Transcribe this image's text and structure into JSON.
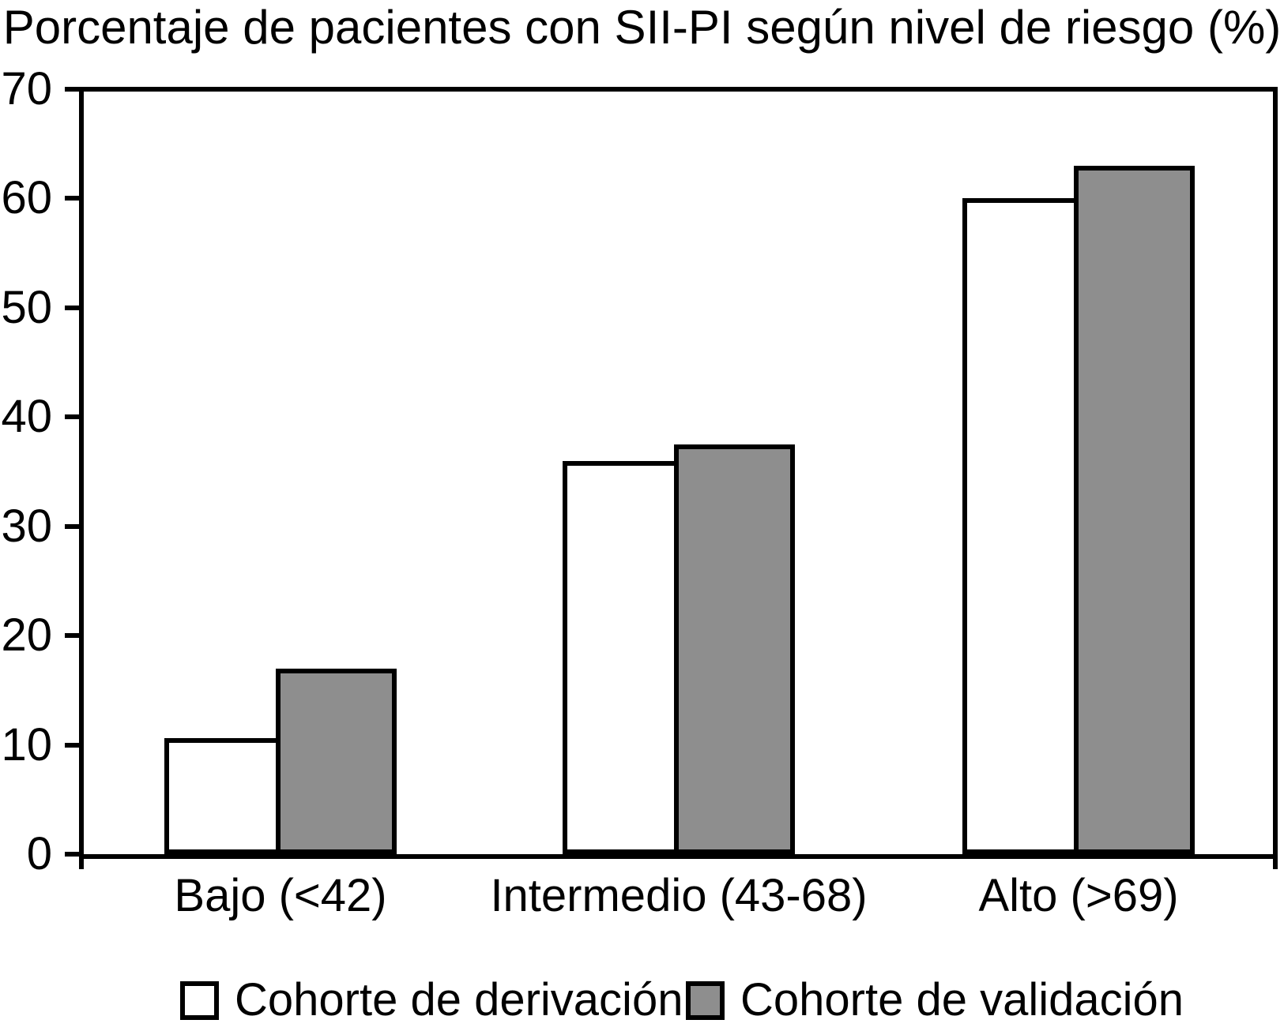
{
  "chart_data": {
    "type": "bar",
    "title": "Porcentaje de pacientes con SII-PI según nivel de riesgo (%)",
    "xlabel": "",
    "ylabel": "",
    "ylim": [
      0,
      70
    ],
    "yticks": [
      0,
      10,
      20,
      30,
      40,
      50,
      60,
      70
    ],
    "grid": false,
    "legend_position": "bottom",
    "categories": [
      "Bajo (<42)",
      "Intermedio (43-68)",
      "Alto (>69)"
    ],
    "series": [
      {
        "name": "Cohorte de derivación",
        "color": "#ffffff",
        "values": [
          10.6,
          36,
          60
        ]
      },
      {
        "name": "Cohorte de validación",
        "color": "#8e8e8e",
        "values": [
          17,
          37.5,
          63
        ]
      }
    ]
  }
}
